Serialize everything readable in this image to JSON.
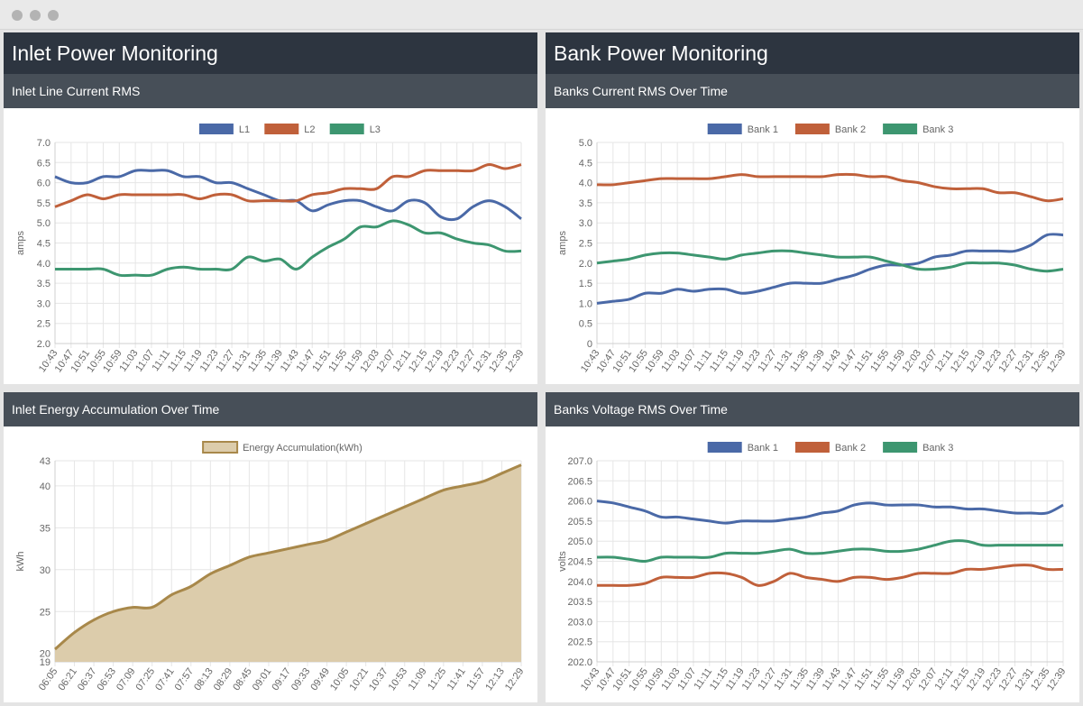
{
  "window": {
    "controls": [
      "close-dot",
      "minimize-dot",
      "maximize-dot"
    ]
  },
  "left_panel": {
    "title": "Inlet Power Monitoring"
  },
  "right_panel": {
    "title": "Bank Power Monitoring"
  },
  "cards": {
    "inlet_current": {
      "title": "Inlet Line Current RMS"
    },
    "inlet_energy": {
      "title": "Inlet Energy Accumulation Over Time"
    },
    "bank_current": {
      "title": "Banks Current RMS Over Time"
    },
    "bank_voltage": {
      "title": "Banks Voltage RMS Over Time"
    }
  },
  "chart_data": [
    {
      "id": "inlet_current",
      "type": "line",
      "ylabel": "amps",
      "ylim": [
        2.0,
        7.0
      ],
      "yticks": [
        "2.0",
        "2.5",
        "3.0",
        "3.5",
        "4.0",
        "4.5",
        "5.0",
        "5.5",
        "6.0",
        "6.5",
        "7.0"
      ],
      "x": [
        "10:43",
        "10:47",
        "10:51",
        "10:55",
        "10:59",
        "11:03",
        "11:07",
        "11:11",
        "11:15",
        "11:19",
        "11:23",
        "11:27",
        "11:31",
        "11:35",
        "11:39",
        "11:43",
        "11:47",
        "11:51",
        "11:55",
        "11:59",
        "12:03",
        "12:07",
        "12:11",
        "12:15",
        "12:19",
        "12:23",
        "12:27",
        "12:31",
        "12:35",
        "12:39"
      ],
      "legend_position": "top",
      "grid": true,
      "series": [
        {
          "name": "L1",
          "color": "#4a69a7",
          "values": [
            6.15,
            6.0,
            6.0,
            6.15,
            6.15,
            6.3,
            6.3,
            6.3,
            6.15,
            6.15,
            6.0,
            6.0,
            5.85,
            5.7,
            5.55,
            5.55,
            5.3,
            5.45,
            5.55,
            5.55,
            5.4,
            5.3,
            5.55,
            5.5,
            5.15,
            5.1,
            5.4,
            5.55,
            5.4,
            5.1
          ]
        },
        {
          "name": "L2",
          "color": "#c0603a",
          "values": [
            5.4,
            5.55,
            5.7,
            5.6,
            5.7,
            5.7,
            5.7,
            5.7,
            5.7,
            5.6,
            5.7,
            5.7,
            5.55,
            5.55,
            5.55,
            5.55,
            5.7,
            5.75,
            5.85,
            5.85,
            5.85,
            6.15,
            6.15,
            6.3,
            6.3,
            6.3,
            6.3,
            6.45,
            6.35,
            6.45
          ]
        },
        {
          "name": "L3",
          "color": "#3d9670",
          "values": [
            3.85,
            3.85,
            3.85,
            3.85,
            3.7,
            3.7,
            3.7,
            3.85,
            3.9,
            3.85,
            3.85,
            3.85,
            4.15,
            4.05,
            4.1,
            3.85,
            4.15,
            4.4,
            4.6,
            4.9,
            4.9,
            5.05,
            4.95,
            4.75,
            4.75,
            4.6,
            4.5,
            4.45,
            4.3,
            4.3
          ]
        }
      ]
    },
    {
      "id": "bank_current",
      "type": "line",
      "ylabel": "amps",
      "ylim": [
        0,
        5.0
      ],
      "yticks": [
        "0",
        "0.5",
        "1.0",
        "1.5",
        "2.0",
        "2.5",
        "3.0",
        "3.5",
        "4.0",
        "4.5",
        "5.0"
      ],
      "x": [
        "10:43",
        "10:47",
        "10:51",
        "10:55",
        "10:59",
        "11:03",
        "11:07",
        "11:11",
        "11:15",
        "11:19",
        "11:23",
        "11:27",
        "11:31",
        "11:35",
        "11:39",
        "11:43",
        "11:47",
        "11:51",
        "11:55",
        "11:59",
        "12:03",
        "12:07",
        "12:11",
        "12:15",
        "12:19",
        "12:23",
        "12:27",
        "12:31",
        "12:35",
        "12:39"
      ],
      "legend_position": "top",
      "grid": true,
      "series": [
        {
          "name": "Bank 1",
          "color": "#4a69a7",
          "values": [
            1.0,
            1.05,
            1.1,
            1.25,
            1.25,
            1.35,
            1.3,
            1.35,
            1.35,
            1.25,
            1.3,
            1.4,
            1.5,
            1.5,
            1.5,
            1.6,
            1.7,
            1.85,
            1.95,
            1.95,
            2.0,
            2.15,
            2.2,
            2.3,
            2.3,
            2.3,
            2.3,
            2.45,
            2.7,
            2.7
          ]
        },
        {
          "name": "Bank 2",
          "color": "#c0603a",
          "values": [
            3.95,
            3.95,
            4.0,
            4.05,
            4.1,
            4.1,
            4.1,
            4.1,
            4.15,
            4.2,
            4.15,
            4.15,
            4.15,
            4.15,
            4.15,
            4.2,
            4.2,
            4.15,
            4.15,
            4.05,
            4.0,
            3.9,
            3.85,
            3.85,
            3.85,
            3.75,
            3.75,
            3.65,
            3.55,
            3.6
          ]
        },
        {
          "name": "Bank 3",
          "color": "#3d9670",
          "values": [
            2.0,
            2.05,
            2.1,
            2.2,
            2.25,
            2.25,
            2.2,
            2.15,
            2.1,
            2.2,
            2.25,
            2.3,
            2.3,
            2.25,
            2.2,
            2.15,
            2.15,
            2.15,
            2.05,
            1.95,
            1.85,
            1.85,
            1.9,
            2.0,
            2.0,
            2.0,
            1.95,
            1.85,
            1.8,
            1.85
          ]
        }
      ]
    },
    {
      "id": "inlet_energy",
      "type": "area",
      "ylabel": "kWh",
      "ylim": [
        19,
        43
      ],
      "yticks": [
        "19",
        "20",
        "25",
        "30",
        "35",
        "40",
        "43"
      ],
      "x": [
        "06:05",
        "06:21",
        "06:37",
        "06:53",
        "07:09",
        "07:25",
        "07:41",
        "07:57",
        "08:13",
        "08:29",
        "08:45",
        "09:01",
        "09:17",
        "09:33",
        "09:49",
        "10:05",
        "10:21",
        "10:37",
        "10:53",
        "11:09",
        "11:25",
        "11:41",
        "11:57",
        "12:13",
        "12:29"
      ],
      "legend_position": "top",
      "grid": true,
      "series": [
        {
          "name": "Energy Accumulation(kWh)",
          "color": "#a8884a",
          "fill": "#dcccab",
          "values": [
            20.5,
            22.5,
            24.0,
            25.0,
            25.5,
            25.5,
            27.0,
            28.0,
            29.5,
            30.5,
            31.5,
            32.0,
            32.5,
            33.0,
            33.5,
            34.5,
            35.5,
            36.5,
            37.5,
            38.5,
            39.5,
            40.0,
            40.5,
            41.5,
            42.5
          ]
        }
      ]
    },
    {
      "id": "bank_voltage",
      "type": "line",
      "ylabel": "volts",
      "ylim": [
        202.0,
        207.0
      ],
      "yticks": [
        "202.0",
        "202.5",
        "203.0",
        "203.5",
        "204.0",
        "204.5",
        "205.0",
        "205.5",
        "206.0",
        "206.5",
        "207.0"
      ],
      "x": [
        "10:43",
        "10:47",
        "10:51",
        "10:55",
        "10:59",
        "11:03",
        "11:07",
        "11:11",
        "11:15",
        "11:19",
        "11:23",
        "11:27",
        "11:31",
        "11:35",
        "11:39",
        "11:43",
        "11:47",
        "11:51",
        "11:55",
        "11:59",
        "12:03",
        "12:07",
        "12:11",
        "12:15",
        "12:19",
        "12:23",
        "12:27",
        "12:31",
        "12:35",
        "12:39"
      ],
      "legend_position": "top",
      "grid": true,
      "series": [
        {
          "name": "Bank 1",
          "color": "#4a69a7",
          "values": [
            206.0,
            205.95,
            205.85,
            205.75,
            205.6,
            205.6,
            205.55,
            205.5,
            205.45,
            205.5,
            205.5,
            205.5,
            205.55,
            205.6,
            205.7,
            205.75,
            205.9,
            205.95,
            205.9,
            205.9,
            205.9,
            205.85,
            205.85,
            205.8,
            205.8,
            205.75,
            205.7,
            205.7,
            205.7,
            205.9
          ]
        },
        {
          "name": "Bank 2",
          "color": "#c0603a",
          "values": [
            203.9,
            203.9,
            203.9,
            203.95,
            204.1,
            204.1,
            204.1,
            204.2,
            204.2,
            204.1,
            203.9,
            204.0,
            204.2,
            204.1,
            204.05,
            204.0,
            204.1,
            204.1,
            204.05,
            204.1,
            204.2,
            204.2,
            204.2,
            204.3,
            204.3,
            204.35,
            204.4,
            204.4,
            204.3,
            204.3
          ]
        },
        {
          "name": "Bank 3",
          "color": "#3d9670",
          "values": [
            204.6,
            204.6,
            204.55,
            204.5,
            204.6,
            204.6,
            204.6,
            204.6,
            204.7,
            204.7,
            204.7,
            204.75,
            204.8,
            204.7,
            204.7,
            204.75,
            204.8,
            204.8,
            204.75,
            204.75,
            204.8,
            204.9,
            205.0,
            205.0,
            204.9,
            204.9,
            204.9,
            204.9,
            204.9,
            204.9
          ]
        }
      ]
    }
  ]
}
